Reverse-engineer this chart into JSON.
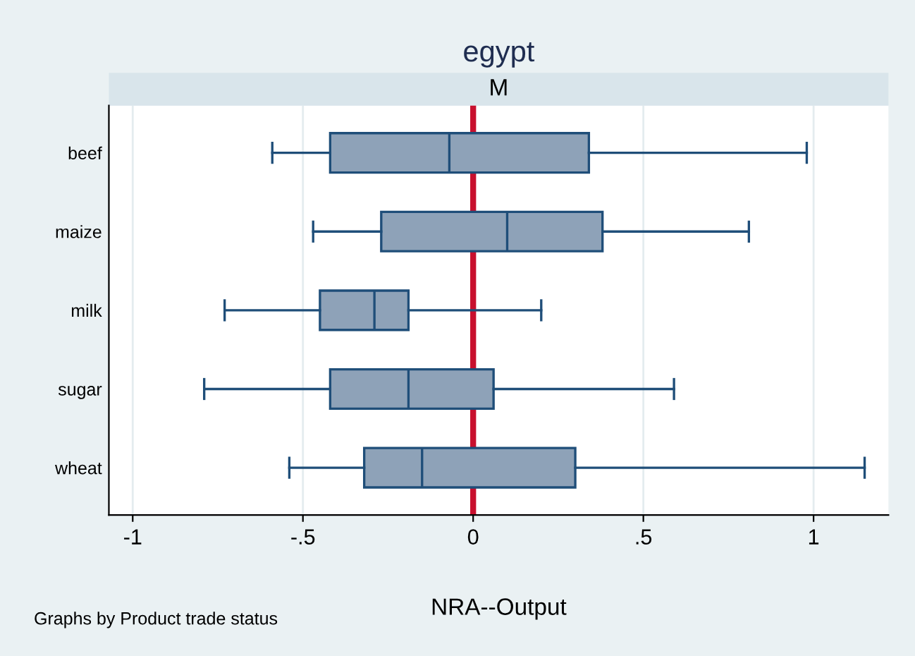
{
  "chart_data": {
    "type": "box",
    "orientation": "horizontal",
    "title": "egypt",
    "subtitle": "M",
    "xlabel": "NRA--Output",
    "categories": [
      "beef",
      "maize",
      "milk",
      "sugar",
      "wheat"
    ],
    "boxes": [
      {
        "low": -0.59,
        "q1": -0.42,
        "median": -0.07,
        "q3": 0.34,
        "high": 0.98
      },
      {
        "low": -0.47,
        "q1": -0.27,
        "median": 0.1,
        "q3": 0.38,
        "high": 0.81
      },
      {
        "low": -0.73,
        "q1": -0.45,
        "median": -0.29,
        "q3": -0.19,
        "high": 0.2
      },
      {
        "low": -0.79,
        "q1": -0.42,
        "median": -0.19,
        "q3": 0.06,
        "high": 0.59
      },
      {
        "low": -0.54,
        "q1": -0.32,
        "median": -0.15,
        "q3": 0.3,
        "high": 1.15
      }
    ],
    "color": "#8ea2b8",
    "xlim": [
      -1.07,
      1.22
    ],
    "xticks": [
      {
        "value": -1,
        "label": "-1"
      },
      {
        "value": -0.5,
        "label": "-.5"
      },
      0,
      {
        "value": 0.5,
        "label": ".5"
      },
      1
    ],
    "grid": "x",
    "ref_lines": [
      {
        "axis": "x",
        "value": 0,
        "color": "#c8102e"
      }
    ],
    "annotations": [
      "Graphs by Product trade status"
    ]
  }
}
